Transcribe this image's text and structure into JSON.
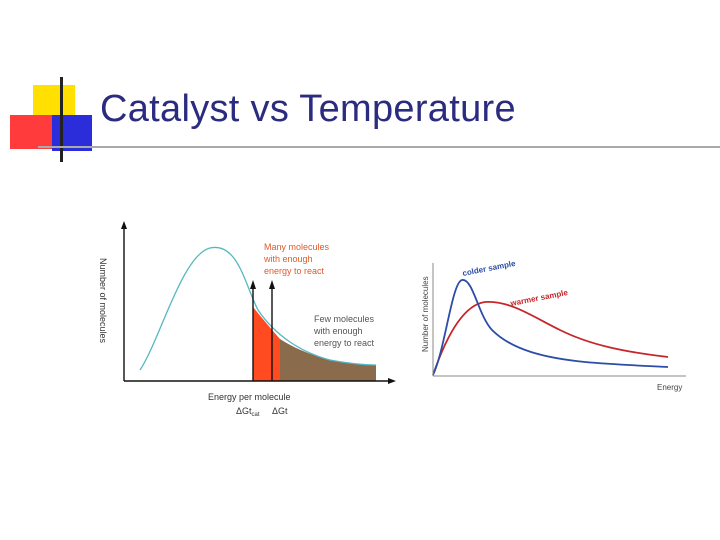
{
  "slide": {
    "title": "Catalyst vs Temperature",
    "colors": {
      "title": "#2b2b80",
      "accent_yellow": "#ffe000",
      "accent_red": "#ff3b3b",
      "accent_blue": "#2b2ddb"
    }
  },
  "left_diagram": {
    "y_axis_label": "Number of molecules",
    "x_axis_label": "Energy per molecule",
    "label_many": [
      "Many molecules",
      "with enough",
      "energy to react"
    ],
    "label_few": [
      "Few molecules",
      "with enough",
      "energy to react"
    ],
    "threshold_cat": "ΔGt",
    "threshold_cat_sub": "cat",
    "threshold_uncat": "ΔGt",
    "colors": {
      "curve": "#55b8c0",
      "many": "#ff4b1f",
      "few": "#8a6b4c",
      "label": "#e05a2a",
      "label_few": "#555555"
    }
  },
  "right_diagram": {
    "y_axis_label": "Number of molecules",
    "x_axis_label": "Energy",
    "colder_label": "colder sample",
    "warmer_label": "warmer sample",
    "colors": {
      "colder": "#2b4da8",
      "warmer": "#c4262a"
    }
  }
}
